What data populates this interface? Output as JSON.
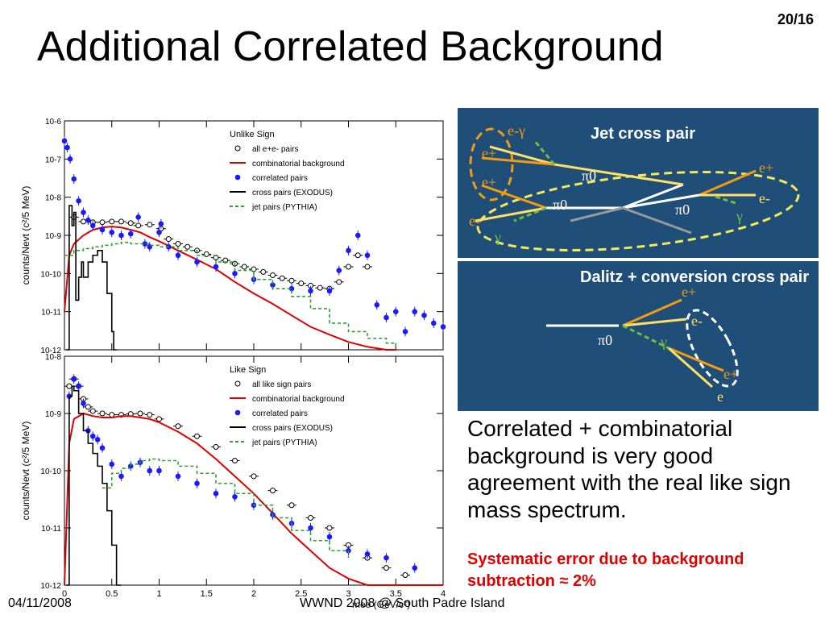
{
  "slide": {
    "title": "Additional Correlated Background",
    "page_number": "20/16",
    "date": "04/11/2008",
    "venue": "WWND 2008 @ South Padre Island",
    "body_text": "Correlated + combinatorial background is very good agreement with the real like sign mass spectrum.",
    "highlight_text": "Systematic error due to background subtraction ≈ 2%"
  },
  "diagram_jet": {
    "title": "Jet cross pair",
    "labels": {
      "e_gamma": "e-γ",
      "e_plus_top": "e+",
      "e_plus_mid": "e+",
      "e_minus_left": "e-",
      "gamma_left": "γ",
      "pi0_a": "π0",
      "pi0_b": "π0",
      "pi0_c": "π0",
      "e_plus_right": "e+",
      "e_minus_right": "e-",
      "gamma_right": "γ"
    },
    "colors": {
      "background": "#1f4e79",
      "ellipse": "#f5e85a",
      "circle": "#f39c12",
      "electron": "#ffe066",
      "positron": "#f39c12",
      "gamma": "#6fbf40"
    }
  },
  "diagram_dalitz": {
    "title": "Dalitz + conversion cross pair",
    "labels": {
      "pi0": "π0",
      "e_plus_top": "e+",
      "e_minus_top": "e-",
      "gamma": "γ",
      "e_plus_bottom": "e+",
      "e_minus_bottom": "e"
    },
    "colors": {
      "background": "#1f4e79",
      "ellipse": "#ffffff",
      "electron": "#ffe066",
      "positron": "#f39c12",
      "gamma": "#6fbf40"
    }
  },
  "chart_data": [
    {
      "type": "scatter",
      "panel": "top",
      "legend_title": "Unlike Sign",
      "ylabel": "counts/Nevt (c²/5 MeV)",
      "xlim": [
        0,
        4
      ],
      "ylim": [
        1e-12,
        1e-06
      ],
      "yscale": "log",
      "y_ticks": [
        "10-6",
        "10-7",
        "10-8",
        "10-9",
        "10-10",
        "10-11",
        "10-12"
      ],
      "legend_position": "top-right",
      "series": [
        {
          "name": "all e+e- pairs",
          "style": "open-circle",
          "color": "#000000",
          "x": [
            0.1,
            0.2,
            0.3,
            0.4,
            0.5,
            0.6,
            0.7,
            0.78,
            0.9,
            1.02,
            1.1,
            1.2,
            1.3,
            1.4,
            1.5,
            1.6,
            1.7,
            1.8,
            1.9,
            2.0,
            2.1,
            2.2,
            2.3,
            2.4,
            2.5,
            2.6,
            2.7,
            2.8,
            2.9,
            3.0,
            3.1,
            3.2
          ],
          "y": [
            3e-09,
            2.3e-09,
            2.2e-09,
            2.2e-09,
            2.3e-09,
            2.3e-09,
            2.1e-09,
            1.8e-09,
            1.9e-09,
            1.5e-09,
            8e-10,
            6e-10,
            5e-10,
            4e-10,
            3.2e-10,
            2.6e-10,
            2.2e-10,
            1.8e-10,
            1.5e-10,
            1.3e-10,
            1.1e-10,
            9e-11,
            7.5e-11,
            6.5e-11,
            5.5e-11,
            4.8e-11,
            4.2e-11,
            4e-11,
            6e-11,
            1.5e-10,
            3e-10,
            1.5e-10
          ]
        },
        {
          "name": "combinatorial background",
          "style": "line",
          "color": "#e00000",
          "x": [
            0.0,
            0.05,
            0.1,
            0.2,
            0.3,
            0.4,
            0.5,
            0.6,
            0.7,
            0.8,
            0.9,
            1.0,
            1.2,
            1.4,
            1.6,
            1.8,
            2.0,
            2.2,
            2.4,
            2.6,
            2.8,
            3.0,
            3.2,
            3.4,
            3.5
          ],
          "y": [
            1e-11,
            3e-10,
            6e-10,
            1e-09,
            1.4e-09,
            1.6e-09,
            1.7e-09,
            1.6e-09,
            1.4e-09,
            1.2e-09,
            9e-10,
            7e-10,
            4e-10,
            2.3e-10,
            1.3e-10,
            6e-11,
            3e-11,
            1.6e-11,
            8e-12,
            4e-12,
            2.5e-12,
            1.6e-12,
            1.2e-12,
            1e-12,
            1e-12
          ]
        },
        {
          "name": "correlated pairs",
          "style": "filled-circle",
          "color": "#1a1aff",
          "x": [
            0.0,
            0.03,
            0.06,
            0.1,
            0.15,
            0.2,
            0.25,
            0.3,
            0.4,
            0.5,
            0.6,
            0.7,
            0.78,
            0.85,
            0.9,
            1.0,
            1.02,
            1.1,
            1.2,
            1.4,
            1.6,
            1.8,
            2.0,
            2.2,
            2.4,
            2.6,
            2.8,
            2.9,
            3.0,
            3.1,
            3.2,
            3.3,
            3.4,
            3.5,
            3.6,
            3.7,
            3.8,
            3.9,
            4.0
          ],
          "y": [
            3e-07,
            2e-07,
            1e-07,
            3e-08,
            8e-09,
            4e-09,
            2.5e-09,
            1.8e-09,
            1.4e-09,
            1.2e-09,
            1e-09,
            1.1e-09,
            3e-09,
            6e-10,
            5e-10,
            1.2e-09,
            2e-09,
            5e-10,
            3e-10,
            2e-10,
            1.5e-10,
            1e-10,
            7e-11,
            5e-11,
            4e-11,
            3.5e-11,
            3.5e-11,
            1.2e-10,
            4e-10,
            1e-09,
            3e-10,
            1.5e-11,
            7e-12,
            1e-11,
            3e-12,
            1e-11,
            8e-12,
            5e-12,
            4e-12
          ]
        },
        {
          "name": "cross pairs (EXODUS)",
          "style": "step",
          "color": "#000000",
          "x": [
            0.02,
            0.05,
            0.08,
            0.1,
            0.12,
            0.15,
            0.18,
            0.2,
            0.25,
            0.3,
            0.35,
            0.4,
            0.45,
            0.5,
            0.52,
            0.55
          ],
          "y": [
            1e-12,
            6e-09,
            1.8e-09,
            4e-09,
            2e-11,
            8e-11,
            2e-10,
            8e-11,
            2e-10,
            3e-10,
            4e-10,
            2e-10,
            3e-11,
            3e-12,
            1e-12,
            1e-12
          ]
        },
        {
          "name": "jet pairs (PYTHIA)",
          "style": "dashed-step",
          "color": "#2ca02c",
          "x": [
            0.0,
            0.1,
            0.2,
            0.3,
            0.4,
            0.5,
            0.6,
            0.7,
            0.8,
            0.9,
            1.0,
            1.2,
            1.4,
            1.6,
            1.8,
            2.0,
            2.2,
            2.4,
            2.6,
            2.8,
            3.0,
            3.2,
            3.4,
            3.5
          ],
          "y": [
            3e-10,
            4e-10,
            4.5e-10,
            5e-10,
            5.5e-10,
            6e-10,
            6.5e-10,
            6e-10,
            6e-10,
            5.5e-10,
            5e-10,
            4e-10,
            3e-10,
            2e-10,
            1.2e-10,
            7e-11,
            4e-11,
            2.5e-11,
            1.2e-11,
            5e-12,
            3e-12,
            2e-12,
            1.5e-12,
            1.2e-12
          ]
        }
      ]
    },
    {
      "type": "scatter",
      "panel": "bottom",
      "legend_title": "Like Sign",
      "xlabel": "mee (GeV/c²)",
      "ylabel": "counts/Nevt (c²/5 MeV)",
      "xlim": [
        0,
        4
      ],
      "ylim": [
        1e-12,
        1e-08
      ],
      "yscale": "log",
      "x_ticks": [
        "0",
        "0.5",
        "1",
        "1.5",
        "2",
        "2.5",
        "3",
        "3.5",
        "4"
      ],
      "y_ticks": [
        "10-8",
        "10-9",
        "10-10",
        "10-11",
        "10-12"
      ],
      "legend_position": "top-right",
      "series": [
        {
          "name": "all like sign pairs",
          "style": "open-circle",
          "color": "#000000",
          "x": [
            0.05,
            0.1,
            0.15,
            0.2,
            0.25,
            0.3,
            0.4,
            0.5,
            0.6,
            0.7,
            0.8,
            0.9,
            1.0,
            1.2,
            1.4,
            1.6,
            1.8,
            2.0,
            2.2,
            2.4,
            2.6,
            2.8,
            3.0,
            3.2,
            3.4,
            3.6
          ],
          "y": [
            3e-09,
            4e-09,
            3e-09,
            1.8e-09,
            1.3e-09,
            1.1e-09,
            1e-09,
            9.5e-10,
            9.5e-10,
            9.8e-10,
            1e-09,
            9.5e-10,
            8e-10,
            6e-10,
            4e-10,
            2.6e-10,
            1.5e-10,
            8e-11,
            4.5e-11,
            2.5e-11,
            1.5e-11,
            1e-11,
            5e-12,
            3e-12,
            2e-12,
            1.5e-12
          ]
        },
        {
          "name": "combinatorial background",
          "style": "line",
          "color": "#e00000",
          "x": [
            0.0,
            0.05,
            0.1,
            0.2,
            0.3,
            0.4,
            0.5,
            0.6,
            0.7,
            0.8,
            0.9,
            1.0,
            1.2,
            1.4,
            1.6,
            1.8,
            2.0,
            2.2,
            2.4,
            2.6,
            2.8,
            3.0,
            3.2,
            3.4,
            3.6,
            3.8,
            4.0
          ],
          "y": [
            1e-12,
            3e-10,
            8e-10,
            1e-09,
            9e-10,
            8.5e-10,
            8.5e-10,
            9e-10,
            9e-10,
            8.5e-10,
            8e-10,
            7e-10,
            4.8e-10,
            3e-10,
            1.6e-10,
            8e-11,
            4e-11,
            1.8e-11,
            8e-12,
            4e-12,
            2e-12,
            1.3e-12,
            1e-12,
            1e-12,
            1e-12,
            1e-12,
            1e-12
          ]
        },
        {
          "name": "correlated pairs",
          "style": "filled-circle",
          "color": "#1a1aff",
          "x": [
            0.05,
            0.1,
            0.15,
            0.2,
            0.25,
            0.3,
            0.35,
            0.4,
            0.5,
            0.6,
            0.7,
            0.8,
            0.9,
            1.0,
            1.2,
            1.4,
            1.6,
            1.8,
            2.0,
            2.2,
            2.4,
            2.6,
            2.8,
            3.0,
            3.2,
            3.4,
            3.7
          ],
          "y": [
            2e-09,
            4e-09,
            3e-09,
            1.5e-09,
            5e-10,
            4e-10,
            3.5e-10,
            2.5e-10,
            1.3e-10,
            8e-11,
            1.2e-10,
            1.4e-10,
            1e-10,
            1e-10,
            8e-11,
            6e-11,
            4e-11,
            3.5e-11,
            2.5e-11,
            1.7e-11,
            1.2e-11,
            1e-11,
            7e-12,
            4e-12,
            3.5e-12,
            3e-12,
            2e-12
          ]
        },
        {
          "name": "cross pairs (EXODUS)",
          "style": "step",
          "color": "#000000",
          "x": [
            0.02,
            0.05,
            0.08,
            0.1,
            0.15,
            0.2,
            0.25,
            0.3,
            0.35,
            0.4,
            0.45,
            0.5,
            0.55,
            0.6
          ],
          "y": [
            1e-12,
            2e-09,
            3e-09,
            2.5e-09,
            1e-09,
            5e-10,
            3e-10,
            2e-10,
            1.2e-10,
            6e-11,
            2e-11,
            5e-12,
            1e-12,
            1e-12
          ]
        },
        {
          "name": "jet pairs (PYTHIA)",
          "style": "dashed-step",
          "color": "#2ca02c",
          "x": [
            0.4,
            0.5,
            0.6,
            0.7,
            0.8,
            0.9,
            1.0,
            1.2,
            1.4,
            1.6,
            1.8,
            2.0,
            2.2,
            2.4,
            2.6,
            2.8,
            3.0
          ],
          "y": [
            5e-11,
            9e-11,
            1.1e-10,
            1.3e-10,
            1.5e-10,
            1.6e-10,
            1.5e-10,
            1.2e-10,
            9e-11,
            6e-11,
            4e-11,
            2.5e-11,
            1.5e-11,
            9e-12,
            6e-12,
            4e-12,
            3e-12
          ]
        }
      ]
    }
  ]
}
